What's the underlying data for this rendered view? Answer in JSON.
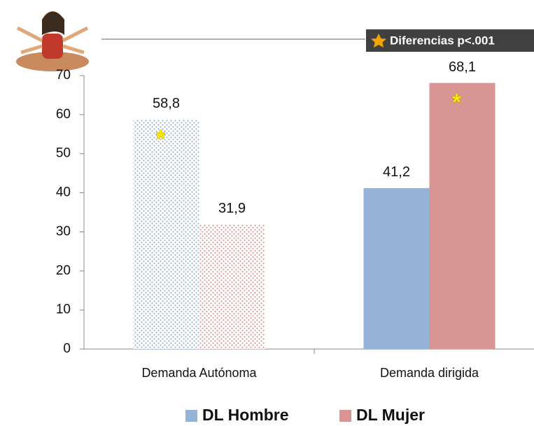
{
  "chart_data": {
    "type": "bar",
    "categories": [
      "Demanda Autónoma",
      "Demanda dirigida"
    ],
    "series": [
      {
        "name": "DL Hombre",
        "color": "#95b3d7",
        "values": [
          58.8,
          41.2
        ],
        "value_labels": [
          "58,8",
          "41,2"
        ]
      },
      {
        "name": "DL Mujer",
        "color": "#d99594",
        "values": [
          31.9,
          68.1
        ],
        "value_labels": [
          "31,9",
          "68,1"
        ]
      }
    ],
    "ylim": [
      0,
      70
    ],
    "yticks": [
      0,
      10,
      20,
      30,
      40,
      50,
      60,
      70
    ],
    "annotation": "Diferencias p<.001",
    "significance_marks": [
      "*",
      "*"
    ],
    "legend": "bottom"
  }
}
